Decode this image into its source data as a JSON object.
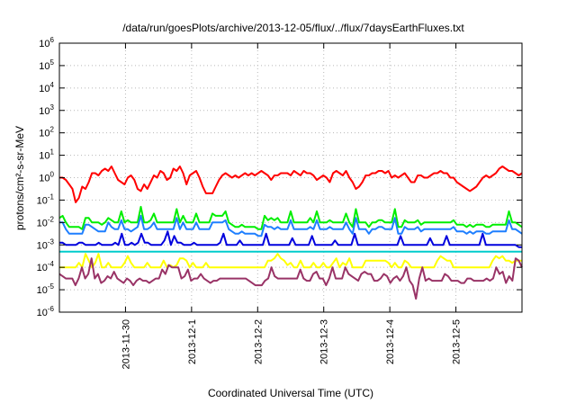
{
  "chart_data": {
    "type": "line",
    "title": "/data/run/goesPlots/archive/2013-12-05/flux/../flux/7daysEarthFluxes.txt",
    "xlabel": "Coordinated Universal Time (UTC)",
    "ylabel": "protons/cm²-s-sr-MeV",
    "yscale": "log",
    "ylim_exponent": [
      -6,
      6
    ],
    "y_ticks": [
      {
        "base": "10",
        "exp": "-6"
      },
      {
        "base": "10",
        "exp": "-5"
      },
      {
        "base": "10",
        "exp": "-4"
      },
      {
        "base": "10",
        "exp": "-3"
      },
      {
        "base": "10",
        "exp": "-2"
      },
      {
        "base": "10",
        "exp": "-1"
      },
      {
        "base": "10",
        "exp": "0"
      },
      {
        "base": "10",
        "exp": "1"
      },
      {
        "base": "10",
        "exp": "2"
      },
      {
        "base": "10",
        "exp": "3"
      },
      {
        "base": "10",
        "exp": "4"
      },
      {
        "base": "10",
        "exp": "5"
      },
      {
        "base": "10",
        "exp": "6"
      }
    ],
    "x_ticks": [
      "2013-11-30",
      "2013-12-1",
      "2013-12-2",
      "2013-12-3",
      "2013-12-4",
      "2013-12-5"
    ],
    "x_range_days": [
      0,
      7
    ],
    "x_tick_days": [
      1,
      2,
      3,
      4,
      5,
      6
    ],
    "grid": true,
    "legend": "none",
    "series": [
      {
        "color": "#ff0000",
        "width": 2,
        "log_values": [
          0.0,
          0.0,
          -0.1,
          -0.3,
          -0.5,
          -1.1,
          -0.9,
          -0.4,
          -0.5,
          -0.2,
          0.2,
          0.2,
          0.1,
          0.3,
          0.4,
          0.3,
          0.5,
          0.2,
          -0.1,
          -0.2,
          -0.3,
          0.0,
          0.1,
          -0.1,
          -0.5,
          -0.6,
          -0.3,
          -0.5,
          -0.2,
          0.1,
          0.0,
          0.3,
          0.2,
          -0.1,
          0.0,
          0.4,
          0.3,
          0.5,
          0.2,
          -0.3,
          0.1,
          0.2,
          0.3,
          0.0,
          -0.4,
          -0.7,
          -0.7,
          -0.7,
          -0.4,
          -0.1,
          0.1,
          0.2,
          0.1,
          0.0,
          0.1,
          0.0,
          0.1,
          0.2,
          0.1,
          0.2,
          0.1,
          0.2,
          0.3,
          0.2,
          0.1,
          -0.1,
          0.1,
          0.1,
          0.2,
          0.2,
          0.2,
          0.1,
          0.3,
          0.2,
          0.1,
          0.3,
          0.2,
          0.2,
          0.1,
          -0.1,
          0.0,
          0.1,
          0.0,
          -0.2,
          0.2,
          0.3,
          0.2,
          0.1,
          0.3,
          0.0,
          -0.2,
          -0.5,
          -0.4,
          -0.2,
          0.1,
          0.1,
          0.2,
          0.2,
          0.3,
          0.3,
          0.2,
          0.3,
          0.0,
          0.1,
          0.0,
          0.1,
          0.2,
          0.0,
          -0.2,
          -0.2,
          0.1,
          0.1,
          0.0,
          0.0,
          0.1,
          0.2,
          0.2,
          0.3,
          0.2,
          0.2,
          0.0,
          0.0,
          -0.2,
          -0.3,
          -0.4,
          -0.5,
          -0.6,
          -0.5,
          -0.4,
          -0.2,
          0.0,
          0.1,
          0.0,
          0.1,
          0.2,
          0.4,
          0.5,
          0.4,
          0.3,
          0.3,
          0.2,
          0.1,
          0.2
        ]
      },
      {
        "color": "#00ee00",
        "width": 2,
        "log_values": [
          -1.8,
          -1.7,
          -2.0,
          -2.2,
          -2.2,
          -2.2,
          -2.2,
          -2.3,
          -1.8,
          -1.8,
          -2.0,
          -2.0,
          -2.0,
          -2.1,
          -2.0,
          -1.8,
          -1.9,
          -2.0,
          -2.0,
          -1.5,
          -2.0,
          -1.9,
          -2.0,
          -2.0,
          -2.0,
          -1.3,
          -2.0,
          -2.0,
          -1.9,
          -1.6,
          -2.0,
          -2.0,
          -2.0,
          -2.0,
          -2.0,
          -2.0,
          -1.4,
          -2.0,
          -1.7,
          -2.0,
          -2.0,
          -2.0,
          -1.6,
          -2.0,
          -2.0,
          -2.0,
          -2.0,
          -1.6,
          -1.7,
          -1.7,
          -1.7,
          -1.5,
          -2.0,
          -2.1,
          -2.2,
          -2.2,
          -2.1,
          -2.2,
          -2.2,
          -2.2,
          -2.2,
          -2.3,
          -2.3,
          -1.7,
          -1.9,
          -1.8,
          -1.9,
          -1.8,
          -2.0,
          -2.0,
          -2.0,
          -1.5,
          -2.0,
          -2.0,
          -2.0,
          -2.0,
          -2.0,
          -1.8,
          -2.0,
          -1.5,
          -2.0,
          -2.0,
          -2.0,
          -1.9,
          -2.0,
          -2.0,
          -2.0,
          -2.0,
          -1.6,
          -2.0,
          -2.2,
          -1.4,
          -2.0,
          -2.0,
          -2.0,
          -2.2,
          -2.0,
          -2.0,
          -1.9,
          -1.9,
          -2.0,
          -2.0,
          -2.0,
          -1.4,
          -2.2,
          -2.2,
          -1.9,
          -2.0,
          -2.0,
          -2.0,
          -1.9,
          -2.1,
          -2.0,
          -2.0,
          -2.0,
          -2.0,
          -2.0,
          -2.0,
          -2.0,
          -2.0,
          -2.0,
          -1.9,
          -2.1,
          -2.1,
          -2.1,
          -2.2,
          -2.1,
          -2.2,
          -2.1,
          -2.1,
          -2.1,
          -2.2,
          -2.2,
          -2.1,
          -2.1,
          -2.1,
          -2.1,
          -2.1,
          -1.5,
          -2.0,
          -2.0,
          -2.1,
          -2.2
        ]
      },
      {
        "color": "#1e7fff",
        "width": 2,
        "log_values": [
          -2.0,
          -2.0,
          -2.3,
          -2.5,
          -2.5,
          -2.5,
          -2.5,
          -2.5,
          -2.1,
          -2.1,
          -2.2,
          -2.3,
          -2.4,
          -2.4,
          -2.4,
          -2.0,
          -2.2,
          -2.3,
          -2.3,
          -1.9,
          -2.3,
          -2.3,
          -2.4,
          -2.3,
          -2.2,
          -1.7,
          -2.3,
          -2.3,
          -2.2,
          -2.0,
          -2.3,
          -2.3,
          -2.3,
          -2.3,
          -2.3,
          -2.3,
          -1.8,
          -2.3,
          -2.0,
          -2.3,
          -2.3,
          -2.3,
          -2.0,
          -2.3,
          -2.3,
          -2.3,
          -2.3,
          -2.0,
          -2.0,
          -2.0,
          -2.0,
          -1.9,
          -2.3,
          -2.4,
          -2.5,
          -2.5,
          -2.4,
          -2.5,
          -2.5,
          -2.5,
          -2.5,
          -2.6,
          -2.6,
          -2.1,
          -2.2,
          -2.2,
          -2.3,
          -2.2,
          -2.3,
          -2.3,
          -2.3,
          -1.9,
          -2.3,
          -2.3,
          -2.3,
          -2.3,
          -2.3,
          -2.2,
          -2.3,
          -1.9,
          -2.3,
          -2.3,
          -2.3,
          -2.2,
          -2.3,
          -2.3,
          -2.3,
          -2.3,
          -2.0,
          -2.3,
          -2.5,
          -1.8,
          -2.3,
          -2.3,
          -2.3,
          -2.5,
          -2.3,
          -2.3,
          -2.2,
          -2.2,
          -2.3,
          -2.3,
          -2.3,
          -1.8,
          -2.5,
          -2.5,
          -2.2,
          -2.3,
          -2.3,
          -2.3,
          -2.2,
          -2.4,
          -2.3,
          -2.3,
          -2.3,
          -2.3,
          -2.3,
          -2.3,
          -2.3,
          -2.3,
          -2.3,
          -2.2,
          -2.4,
          -2.4,
          -2.4,
          -2.5,
          -2.4,
          -2.5,
          -2.4,
          -2.4,
          -2.4,
          -2.5,
          -2.5,
          -2.4,
          -2.4,
          -2.4,
          -2.4,
          -2.4,
          -1.9,
          -2.3,
          -2.3,
          -2.4,
          -2.5
        ]
      },
      {
        "color": "#0000dd",
        "width": 2,
        "log_values": [
          -2.9,
          -2.9,
          -3.0,
          -3.0,
          -3.0,
          -3.0,
          -2.9,
          -2.9,
          -3.0,
          -3.0,
          -3.0,
          -3.0,
          -2.9,
          -3.0,
          -3.0,
          -3.0,
          -3.0,
          -2.9,
          -3.0,
          -2.5,
          -3.0,
          -3.0,
          -2.9,
          -3.0,
          -2.9,
          -2.5,
          -2.9,
          -2.9,
          -3.0,
          -3.0,
          -3.0,
          -3.0,
          -2.8,
          -2.4,
          -3.0,
          -2.6,
          -2.9,
          -2.9,
          -3.0,
          -3.0,
          -3.0,
          -2.9,
          -3.0,
          -3.0,
          -3.0,
          -3.0,
          -3.0,
          -3.0,
          -3.0,
          -2.9,
          -2.5,
          -3.0,
          -3.0,
          -3.0,
          -3.0,
          -2.8,
          -3.0,
          -3.0,
          -3.0,
          -3.0,
          -3.0,
          -3.0,
          -3.0,
          -2.5,
          -3.0,
          -3.0,
          -3.0,
          -3.0,
          -3.0,
          -3.0,
          -3.0,
          -2.7,
          -3.0,
          -3.0,
          -3.0,
          -3.0,
          -3.0,
          -2.6,
          -3.0,
          -3.0,
          -3.0,
          -3.0,
          -3.0,
          -3.0,
          -2.8,
          -3.0,
          -3.0,
          -3.0,
          -3.0,
          -3.0,
          -2.5,
          -3.0,
          -3.0,
          -3.0,
          -3.0,
          -3.0,
          -3.0,
          -3.0,
          -3.0,
          -3.0,
          -3.0,
          -3.0,
          -3.0,
          -3.0,
          -2.6,
          -3.0,
          -3.0,
          -3.0,
          -3.0,
          -3.0,
          -3.0,
          -3.0,
          -3.0,
          -2.7,
          -3.0,
          -3.0,
          -3.0,
          -3.0,
          -2.6,
          -3.0,
          -3.0,
          -3.0,
          -3.0,
          -3.0,
          -3.0,
          -3.0,
          -3.0,
          -3.0,
          -3.0,
          -2.5,
          -3.0,
          -3.0,
          -3.0,
          -3.0,
          -3.0,
          -3.0,
          -3.0,
          -3.0,
          -3.0,
          -3.0,
          -3.1,
          -3.1
        ]
      },
      {
        "color": "#00cccc",
        "width": 2,
        "log_values": [
          -3.3,
          -3.3,
          -3.3,
          -3.3,
          -3.3,
          -3.3,
          -3.3,
          -3.3,
          -3.3,
          -3.3,
          -3.3,
          -3.3,
          -3.3,
          -3.3,
          -3.3,
          -3.3,
          -3.3,
          -3.3,
          -3.3,
          -3.3,
          -3.3,
          -3.3,
          -3.3,
          -3.3,
          -3.3,
          -3.3,
          -3.3,
          -3.3,
          -3.3,
          -3.3,
          -3.3,
          -3.3,
          -3.3,
          -3.3,
          -3.3,
          -3.3,
          -3.3,
          -3.3,
          -3.3,
          -3.3,
          -3.3,
          -3.3,
          -3.3,
          -3.3,
          -3.3,
          -3.3,
          -3.3,
          -3.3,
          -3.3,
          -3.3,
          -3.3,
          -3.3,
          -3.3,
          -3.3,
          -3.3,
          -3.3,
          -3.3,
          -3.3,
          -3.3,
          -3.3,
          -3.3,
          -3.3,
          -3.3,
          -3.3,
          -3.3,
          -3.3,
          -3.3,
          -3.3,
          -3.3,
          -3.3,
          -3.3,
          -3.3,
          -3.3,
          -3.3,
          -3.3,
          -3.3,
          -3.3,
          -3.3,
          -3.3,
          -3.3,
          -3.3,
          -3.3,
          -3.3,
          -3.3,
          -3.3,
          -3.3,
          -3.3,
          -3.3,
          -3.3,
          -3.3,
          -3.3,
          -3.3,
          -3.3,
          -3.3,
          -3.3,
          -3.3,
          -3.3,
          -3.3,
          -3.3,
          -3.3,
          -3.3,
          -3.3,
          -3.3,
          -3.3,
          -3.3,
          -3.3,
          -3.3,
          -3.3,
          -3.3,
          -3.3,
          -3.3,
          -3.3,
          -3.3,
          -3.3,
          -3.3,
          -3.3,
          -3.3,
          -3.3,
          -3.3,
          -3.3,
          -3.3,
          -3.3,
          -3.3,
          -3.3,
          -3.3,
          -3.3,
          -3.3,
          -3.3,
          -3.3,
          -3.3,
          -3.3,
          -3.3,
          -3.3,
          -3.3,
          -3.3,
          -3.3,
          -3.3,
          -3.3,
          -3.3,
          -3.3,
          -3.3,
          -3.3,
          -3.3
        ]
      },
      {
        "color": "#ffff00",
        "width": 2,
        "log_values": [
          -4.0,
          -4.0,
          -4.0,
          -4.0,
          -4.0,
          -4.0,
          -3.8,
          -4.0,
          -3.4,
          -3.7,
          -4.0,
          -3.8,
          -3.4,
          -4.0,
          -4.0,
          -3.8,
          -4.0,
          -4.0,
          -4.0,
          -4.0,
          -3.8,
          -3.5,
          -3.8,
          -4.0,
          -4.0,
          -4.0,
          -4.0,
          -3.8,
          -4.0,
          -4.0,
          -4.0,
          -4.0,
          -3.7,
          -4.0,
          -3.9,
          -4.0,
          -3.9,
          -3.6,
          -3.6,
          -3.7,
          -4.0,
          -3.8,
          -4.0,
          -4.0,
          -4.0,
          -3.8,
          -4.0,
          -4.0,
          -4.0,
          -4.0,
          -4.0,
          -4.0,
          -4.0,
          -4.0,
          -4.0,
          -4.0,
          -4.0,
          -4.0,
          -4.0,
          -4.0,
          -4.0,
          -4.0,
          -4.0,
          -4.0,
          -3.7,
          -3.7,
          -3.6,
          -3.4,
          -3.6,
          -3.7,
          -3.9,
          -3.8,
          -4.0,
          -4.0,
          -3.7,
          -4.0,
          -4.0,
          -4.0,
          -3.8,
          -4.0,
          -4.0,
          -3.8,
          -4.0,
          -4.0,
          -3.8,
          -3.6,
          -4.0,
          -3.8,
          -3.9,
          -3.6,
          -4.0,
          -4.0,
          -4.0,
          -4.0,
          -3.7,
          -3.7,
          -3.7,
          -3.7,
          -3.7,
          -3.7,
          -3.7,
          -3.8,
          -4.0,
          -3.8,
          -4.0,
          -4.0,
          -3.7,
          -3.8,
          -4.0,
          -4.0,
          -4.0,
          -4.0,
          -4.0,
          -4.0,
          -4.0,
          -4.0,
          -3.7,
          -3.5,
          -3.6,
          -3.7,
          -3.7,
          -4.0,
          -4.0,
          -4.0,
          -4.0,
          -4.0,
          -4.0,
          -4.0,
          -4.0,
          -4.0,
          -4.0,
          -4.0,
          -4.0,
          -3.7,
          -3.5,
          -3.6,
          -3.5,
          -3.7,
          -3.7,
          -3.8,
          -3.7,
          -3.7,
          -3.7
        ]
      },
      {
        "color": "#993366",
        "width": 2,
        "log_values": [
          -4.3,
          -4.4,
          -4.5,
          -4.5,
          -4.5,
          -4.8,
          -4.5,
          -4.0,
          -4.5,
          -4.3,
          -3.6,
          -4.5,
          -4.3,
          -4.7,
          -4.6,
          -4.4,
          -4.5,
          -4.2,
          -4.5,
          -4.6,
          -4.7,
          -4.5,
          -4.6,
          -4.8,
          -4.6,
          -4.5,
          -4.6,
          -4.6,
          -4.7,
          -4.6,
          -4.5,
          -4.5,
          -4.1,
          -4.3,
          -3.9,
          -4.0,
          -4.0,
          -4.0,
          -4.5,
          -4.4,
          -4.1,
          -4.6,
          -4.5,
          -4.5,
          -4.3,
          -4.5,
          -4.6,
          -4.7,
          -4.6,
          -4.6,
          -4.5,
          -4.5,
          -4.5,
          -4.5,
          -4.5,
          -4.5,
          -4.5,
          -4.5,
          -4.5,
          -4.6,
          -4.7,
          -4.8,
          -4.8,
          -4.8,
          -4.6,
          -4.5,
          -4.0,
          -4.4,
          -4.5,
          -4.5,
          -4.5,
          -4.5,
          -4.5,
          -4.5,
          -4.5,
          -4.1,
          -4.5,
          -4.6,
          -4.6,
          -4.3,
          -4.2,
          -4.5,
          -4.5,
          -4.8,
          -4.5,
          -4.0,
          -4.5,
          -4.5,
          -4.5,
          -4.0,
          -4.3,
          -4.4,
          -4.5,
          -4.6,
          -4.3,
          -4.2,
          -4.3,
          -4.3,
          -4.6,
          -4.6,
          -4.5,
          -4.3,
          -4.4,
          -4.7,
          -4.5,
          -4.4,
          -4.6,
          -4.4,
          -4.0,
          -4.6,
          -4.8,
          -5.4,
          -4.5,
          -4.0,
          -4.6,
          -4.5,
          -4.6,
          -4.6,
          -4.6,
          -4.6,
          -4.3,
          -4.4,
          -4.6,
          -4.6,
          -4.6,
          -4.7,
          -4.7,
          -4.5,
          -4.5,
          -4.6,
          -4.6,
          -4.6,
          -4.6,
          -4.5,
          -4.6,
          -4.5,
          -4.0,
          -4.3,
          -4.2,
          -4.7,
          -4.4,
          -4.6,
          -3.6,
          -3.7,
          -4.0
        ]
      }
    ]
  }
}
